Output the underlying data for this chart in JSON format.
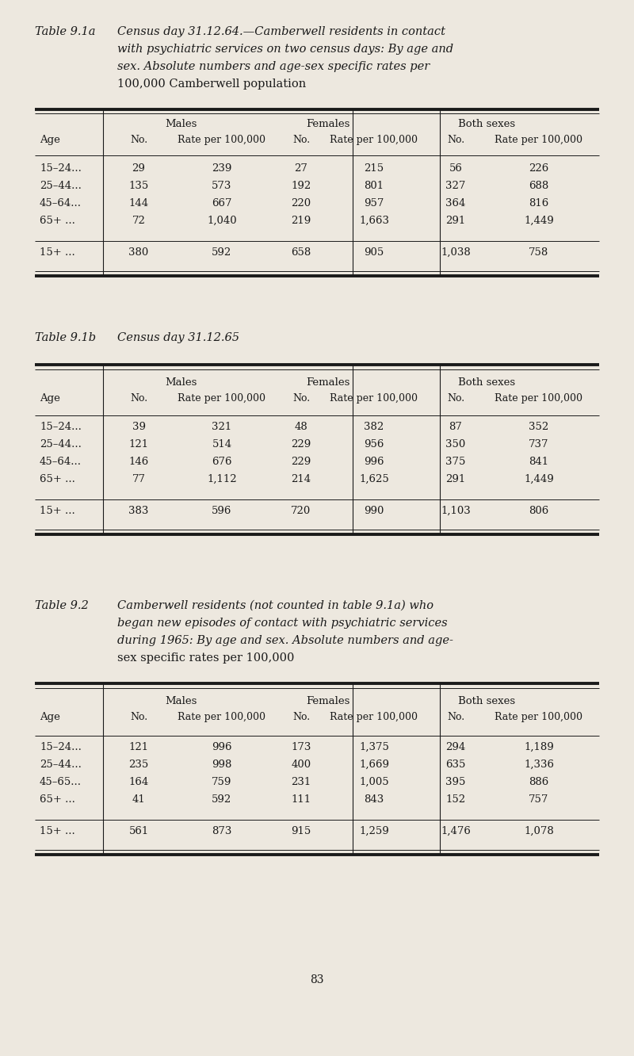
{
  "bg_color": "#ede8df",
  "text_color": "#1a1a1a",
  "page_number": "83",
  "table1a_rows": [
    [
      "15–24...",
      "29",
      "239",
      "27",
      "215",
      "56",
      "226"
    ],
    [
      "25–44...",
      "135",
      "573",
      "192",
      "801",
      "327",
      "688"
    ],
    [
      "45–64...",
      "144",
      "667",
      "220",
      "957",
      "364",
      "816"
    ],
    [
      "65+ ...",
      "72",
      "1,040",
      "219",
      "1,663",
      "291",
      "1,449"
    ]
  ],
  "table1a_total_row": [
    "15+ ...",
    "380",
    "592",
    "658",
    "905",
    "1,038",
    "758"
  ],
  "table1b_rows": [
    [
      "15–24...",
      "39",
      "321",
      "48",
      "382",
      "87",
      "352"
    ],
    [
      "25–44...",
      "121",
      "514",
      "229",
      "956",
      "350",
      "737"
    ],
    [
      "45–64...",
      "146",
      "676",
      "229",
      "996",
      "375",
      "841"
    ],
    [
      "65+ ...",
      "77",
      "1,112",
      "214",
      "1,625",
      "291",
      "1,449"
    ]
  ],
  "table1b_total_row": [
    "15+ ...",
    "383",
    "596",
    "720",
    "990",
    "1,103",
    "806"
  ],
  "table2_rows": [
    [
      "15–24...",
      "121",
      "996",
      "173",
      "1,375",
      "294",
      "1,189"
    ],
    [
      "25–44...",
      "235",
      "998",
      "400",
      "1,669",
      "635",
      "1,336"
    ],
    [
      "45–65...",
      "164",
      "759",
      "231",
      "1,005",
      "395",
      "886"
    ],
    [
      "65+ ...",
      "41",
      "592",
      "111",
      "843",
      "152",
      "757"
    ]
  ],
  "table2_total_row": [
    "15+ ...",
    "561",
    "873",
    "915",
    "1,259",
    "1,476",
    "1,078"
  ]
}
